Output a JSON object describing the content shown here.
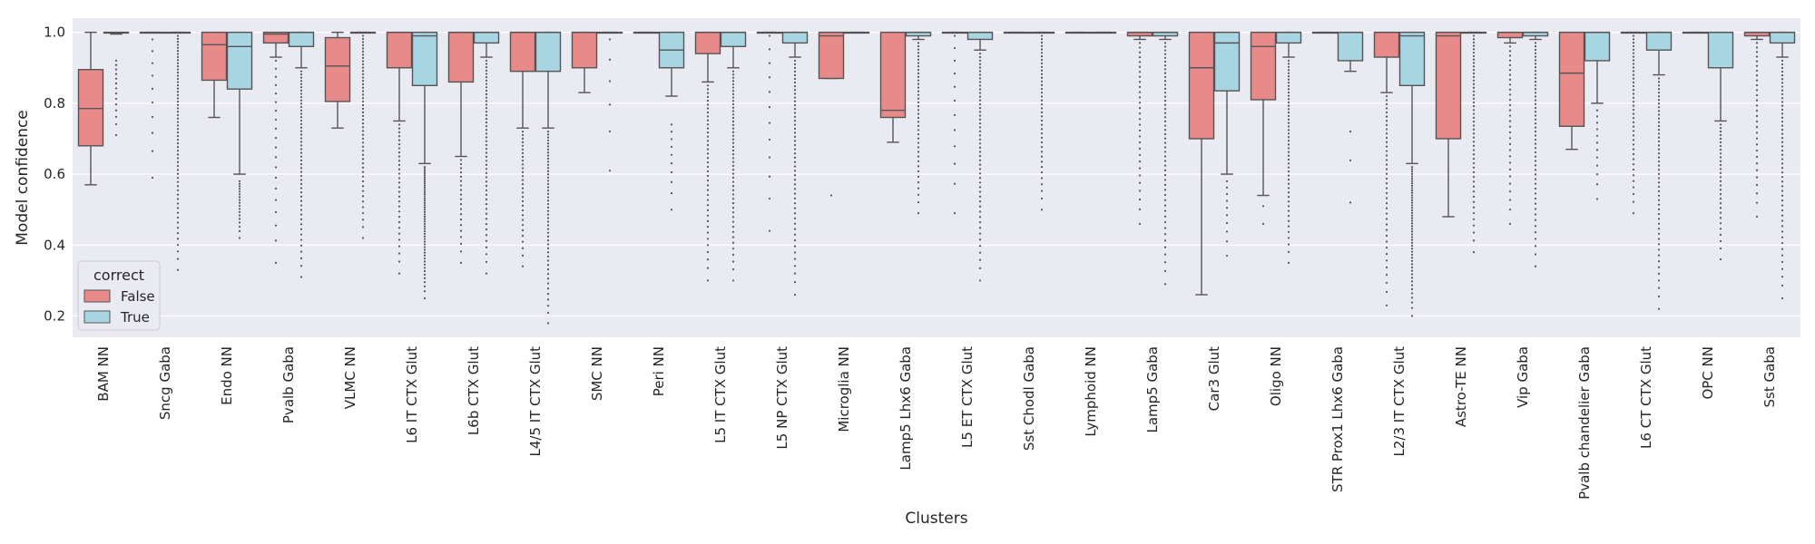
{
  "chart_data": {
    "type": "box",
    "xlabel": "Clusters",
    "ylabel": "Model confidence",
    "ylim": [
      0.14,
      1.04
    ],
    "yticks": [
      "0.2",
      "0.4",
      "0.6",
      "0.8",
      "1.0"
    ],
    "grid": true,
    "legend": {
      "title": "correct",
      "placement": "lower-left",
      "entries": [
        {
          "label": "False",
          "color": "#e8898a"
        },
        {
          "label": "True",
          "color": "#a8d5e2"
        }
      ]
    },
    "series_colors": {
      "False": "#e8898a",
      "True": "#a8d5e2"
    },
    "categories": [
      "BAM NN",
      "Sncg Gaba",
      "Endo NN",
      "Pvalb Gaba",
      "VLMC NN",
      "L6 IT CTX Glut",
      "L6b CTX Glut",
      "L4/5 IT CTX Glut",
      "SMC NN",
      "Peri NN",
      "L5 IT CTX Glut",
      "L5 NP CTX Glut",
      "Microglia NN",
      "Lamp5 Lhx6 Gaba",
      "L5 ET CTX Glut",
      "Sst Chodl Gaba",
      "Lymphoid NN",
      "Lamp5 Gaba",
      "Car3 Glut",
      "Oligo NN",
      "STR Prox1 Lhx6 Gaba",
      "L2/3 IT CTX Glut",
      "Astro-TE NN",
      "Vip Gaba",
      "Pvalb chandelier Gaba",
      "L6 CT CTX Glut",
      "OPC NN",
      "Sst Gaba"
    ],
    "boxes": [
      {
        "cat": 0,
        "hue": "False",
        "q1": 0.68,
        "med": 0.785,
        "q3": 0.895,
        "wlo": 0.57,
        "whi": 1.0,
        "flo": 0,
        "fhi": 0,
        "n": 0
      },
      {
        "cat": 0,
        "hue": "True",
        "q1": 0.998,
        "med": 1.0,
        "q3": 1.0,
        "wlo": 0.995,
        "whi": 1.0,
        "flo": 0.71,
        "fhi": 0.92,
        "n": 14
      },
      {
        "cat": 1,
        "hue": "False",
        "q1": 1.0,
        "med": 1.0,
        "q3": 1.0,
        "wlo": 1.0,
        "whi": 1.0,
        "flo": 0.59,
        "fhi": 0.98,
        "n": 10
      },
      {
        "cat": 1,
        "hue": "True",
        "q1": 1.0,
        "med": 1.0,
        "q3": 1.0,
        "wlo": 1.0,
        "whi": 1.0,
        "flo": 0.33,
        "fhi": 0.99,
        "n": 60
      },
      {
        "cat": 2,
        "hue": "False",
        "q1": 0.865,
        "med": 0.965,
        "q3": 1.0,
        "wlo": 0.76,
        "whi": 1.0,
        "flo": 0,
        "fhi": 0,
        "n": 0
      },
      {
        "cat": 2,
        "hue": "True",
        "q1": 0.84,
        "med": 0.96,
        "q3": 1.0,
        "wlo": 0.6,
        "whi": 1.0,
        "flo": 0.42,
        "fhi": 0.58,
        "n": 18
      },
      {
        "cat": 3,
        "hue": "False",
        "q1": 0.97,
        "med": 0.995,
        "q3": 1.0,
        "wlo": 0.93,
        "whi": 1.0,
        "flo": 0.35,
        "fhi": 0.92,
        "n": 20
      },
      {
        "cat": 3,
        "hue": "True",
        "q1": 0.96,
        "med": 1.0,
        "q3": 1.0,
        "wlo": 0.9,
        "whi": 1.0,
        "flo": 0.31,
        "fhi": 0.89,
        "n": 50
      },
      {
        "cat": 4,
        "hue": "False",
        "q1": 0.805,
        "med": 0.905,
        "q3": 0.985,
        "wlo": 0.73,
        "whi": 1.0,
        "flo": 0,
        "fhi": 0,
        "n": 0
      },
      {
        "cat": 4,
        "hue": "True",
        "q1": 1.0,
        "med": 1.0,
        "q3": 1.0,
        "wlo": 1.0,
        "whi": 1.0,
        "flo": 0.42,
        "fhi": 0.99,
        "n": 50
      },
      {
        "cat": 5,
        "hue": "False",
        "q1": 0.9,
        "med": 1.0,
        "q3": 1.0,
        "wlo": 0.75,
        "whi": 1.0,
        "flo": 0.32,
        "fhi": 0.74,
        "n": 30
      },
      {
        "cat": 5,
        "hue": "True",
        "q1": 0.85,
        "med": 0.99,
        "q3": 1.0,
        "wlo": 0.63,
        "whi": 1.0,
        "flo": 0.25,
        "fhi": 0.62,
        "n": 50
      },
      {
        "cat": 6,
        "hue": "False",
        "q1": 0.86,
        "med": 1.0,
        "q3": 1.0,
        "wlo": 0.65,
        "whi": 1.0,
        "flo": 0.35,
        "fhi": 0.64,
        "n": 20
      },
      {
        "cat": 6,
        "hue": "True",
        "q1": 0.97,
        "med": 1.0,
        "q3": 1.0,
        "wlo": 0.93,
        "whi": 1.0,
        "flo": 0.32,
        "fhi": 0.92,
        "n": 50
      },
      {
        "cat": 7,
        "hue": "False",
        "q1": 0.89,
        "med": 1.0,
        "q3": 1.0,
        "wlo": 0.73,
        "whi": 1.0,
        "flo": 0.34,
        "fhi": 0.72,
        "n": 30
      },
      {
        "cat": 7,
        "hue": "True",
        "q1": 0.89,
        "med": 1.0,
        "q3": 1.0,
        "wlo": 0.73,
        "whi": 1.0,
        "flo": 0.18,
        "fhi": 0.72,
        "n": 50
      },
      {
        "cat": 8,
        "hue": "False",
        "q1": 0.9,
        "med": 1.0,
        "q3": 1.0,
        "wlo": 0.83,
        "whi": 1.0,
        "flo": 0,
        "fhi": 0,
        "n": 0
      },
      {
        "cat": 8,
        "hue": "True",
        "q1": 1.0,
        "med": 1.0,
        "q3": 1.0,
        "wlo": 1.0,
        "whi": 1.0,
        "flo": 0.61,
        "fhi": 0.98,
        "n": 6
      },
      {
        "cat": 9,
        "hue": "False",
        "q1": 1.0,
        "med": 1.0,
        "q3": 1.0,
        "wlo": 1.0,
        "whi": 1.0,
        "flo": 0,
        "fhi": 0,
        "n": 0
      },
      {
        "cat": 9,
        "hue": "True",
        "q1": 0.9,
        "med": 0.95,
        "q3": 1.0,
        "wlo": 0.82,
        "whi": 1.0,
        "flo": 0.5,
        "fhi": 0.74,
        "n": 10
      },
      {
        "cat": 10,
        "hue": "False",
        "q1": 0.94,
        "med": 1.0,
        "q3": 1.0,
        "wlo": 0.86,
        "whi": 1.0,
        "flo": 0.3,
        "fhi": 0.85,
        "n": 40
      },
      {
        "cat": 10,
        "hue": "True",
        "q1": 0.96,
        "med": 1.0,
        "q3": 1.0,
        "wlo": 0.9,
        "whi": 1.0,
        "flo": 0.3,
        "fhi": 0.89,
        "n": 50
      },
      {
        "cat": 11,
        "hue": "False",
        "q1": 1.0,
        "med": 1.0,
        "q3": 1.0,
        "wlo": 1.0,
        "whi": 1.0,
        "flo": 0.44,
        "fhi": 0.99,
        "n": 12
      },
      {
        "cat": 11,
        "hue": "True",
        "q1": 0.97,
        "med": 1.0,
        "q3": 1.0,
        "wlo": 0.93,
        "whi": 1.0,
        "flo": 0.26,
        "fhi": 0.92,
        "n": 50
      },
      {
        "cat": 12,
        "hue": "False",
        "q1": 0.87,
        "med": 0.99,
        "q3": 1.0,
        "wlo": 0.87,
        "whi": 1.0,
        "flo": 0.54,
        "fhi": 0.54,
        "n": 1
      },
      {
        "cat": 12,
        "hue": "True",
        "q1": 1.0,
        "med": 1.0,
        "q3": 1.0,
        "wlo": 1.0,
        "whi": 1.0,
        "flo": 0,
        "fhi": 0,
        "n": 0
      },
      {
        "cat": 13,
        "hue": "False",
        "q1": 0.76,
        "med": 0.78,
        "q3": 1.0,
        "wlo": 0.69,
        "whi": 1.0,
        "flo": 0,
        "fhi": 0,
        "n": 0
      },
      {
        "cat": 13,
        "hue": "True",
        "q1": 0.99,
        "med": 1.0,
        "q3": 1.0,
        "wlo": 0.98,
        "whi": 1.0,
        "flo": 0.49,
        "fhi": 0.97,
        "n": 40
      },
      {
        "cat": 14,
        "hue": "False",
        "q1": 1.0,
        "med": 1.0,
        "q3": 1.0,
        "wlo": 1.0,
        "whi": 1.0,
        "flo": 0.49,
        "fhi": 0.99,
        "n": 12
      },
      {
        "cat": 14,
        "hue": "True",
        "q1": 0.98,
        "med": 1.0,
        "q3": 1.0,
        "wlo": 0.95,
        "whi": 1.0,
        "flo": 0.3,
        "fhi": 0.94,
        "n": 50
      },
      {
        "cat": 15,
        "hue": "False",
        "q1": 1.0,
        "med": 1.0,
        "q3": 1.0,
        "wlo": 1.0,
        "whi": 1.0,
        "flo": 0,
        "fhi": 0,
        "n": 0
      },
      {
        "cat": 15,
        "hue": "True",
        "q1": 1.0,
        "med": 1.0,
        "q3": 1.0,
        "wlo": 1.0,
        "whi": 1.0,
        "flo": 0.5,
        "fhi": 0.99,
        "n": 40
      },
      {
        "cat": 16,
        "hue": "False",
        "q1": 1.0,
        "med": 1.0,
        "q3": 1.0,
        "wlo": 1.0,
        "whi": 1.0,
        "flo": 0,
        "fhi": 0,
        "n": 0
      },
      {
        "cat": 16,
        "hue": "True",
        "q1": 1.0,
        "med": 1.0,
        "q3": 1.0,
        "wlo": 1.0,
        "whi": 1.0,
        "flo": 0,
        "fhi": 0,
        "n": 0
      },
      {
        "cat": 17,
        "hue": "False",
        "q1": 0.99,
        "med": 1.0,
        "q3": 1.0,
        "wlo": 0.98,
        "whi": 1.0,
        "flo": 0.46,
        "fhi": 0.97,
        "n": 30
      },
      {
        "cat": 17,
        "hue": "True",
        "q1": 0.99,
        "med": 1.0,
        "q3": 1.0,
        "wlo": 0.98,
        "whi": 1.0,
        "flo": 0.29,
        "fhi": 0.97,
        "n": 50
      },
      {
        "cat": 18,
        "hue": "False",
        "q1": 0.7,
        "med": 0.9,
        "q3": 1.0,
        "wlo": 0.26,
        "whi": 1.0,
        "flo": 0,
        "fhi": 0,
        "n": 0
      },
      {
        "cat": 18,
        "hue": "True",
        "q1": 0.835,
        "med": 0.97,
        "q3": 1.0,
        "wlo": 0.6,
        "whi": 1.0,
        "flo": 0.37,
        "fhi": 0.58,
        "n": 10
      },
      {
        "cat": 19,
        "hue": "False",
        "q1": 0.81,
        "med": 0.96,
        "q3": 1.0,
        "wlo": 0.54,
        "whi": 1.0,
        "flo": 0.46,
        "fhi": 0.51,
        "n": 2
      },
      {
        "cat": 19,
        "hue": "True",
        "q1": 0.97,
        "med": 1.0,
        "q3": 1.0,
        "wlo": 0.93,
        "whi": 1.0,
        "flo": 0.35,
        "fhi": 0.92,
        "n": 50
      },
      {
        "cat": 20,
        "hue": "False",
        "q1": 1.0,
        "med": 1.0,
        "q3": 1.0,
        "wlo": 1.0,
        "whi": 1.0,
        "flo": 0,
        "fhi": 0,
        "n": 0
      },
      {
        "cat": 20,
        "hue": "True",
        "q1": 0.92,
        "med": 1.0,
        "q3": 1.0,
        "wlo": 0.89,
        "whi": 1.0,
        "flo": 0.52,
        "fhi": 0.72,
        "n": 3
      },
      {
        "cat": 21,
        "hue": "False",
        "q1": 0.93,
        "med": 1.0,
        "q3": 1.0,
        "wlo": 0.83,
        "whi": 1.0,
        "flo": 0.23,
        "fhi": 0.82,
        "n": 40
      },
      {
        "cat": 21,
        "hue": "True",
        "q1": 0.85,
        "med": 0.99,
        "q3": 1.0,
        "wlo": 0.63,
        "whi": 1.0,
        "flo": 0.2,
        "fhi": 0.62,
        "n": 50
      },
      {
        "cat": 22,
        "hue": "False",
        "q1": 0.7,
        "med": 0.99,
        "q3": 1.0,
        "wlo": 0.48,
        "whi": 1.0,
        "flo": 0,
        "fhi": 0,
        "n": 0
      },
      {
        "cat": 22,
        "hue": "True",
        "q1": 1.0,
        "med": 1.0,
        "q3": 1.0,
        "wlo": 1.0,
        "whi": 1.0,
        "flo": 0.38,
        "fhi": 0.99,
        "n": 50
      },
      {
        "cat": 23,
        "hue": "False",
        "q1": 0.985,
        "med": 1.0,
        "q3": 1.0,
        "wlo": 0.97,
        "whi": 1.0,
        "flo": 0.46,
        "fhi": 0.96,
        "n": 30
      },
      {
        "cat": 23,
        "hue": "True",
        "q1": 0.99,
        "med": 1.0,
        "q3": 1.0,
        "wlo": 0.98,
        "whi": 1.0,
        "flo": 0.34,
        "fhi": 0.97,
        "n": 50
      },
      {
        "cat": 24,
        "hue": "False",
        "q1": 0.735,
        "med": 0.885,
        "q3": 1.0,
        "wlo": 0.67,
        "whi": 1.0,
        "flo": 0,
        "fhi": 0,
        "n": 0
      },
      {
        "cat": 24,
        "hue": "True",
        "q1": 0.92,
        "med": 1.0,
        "q3": 1.0,
        "wlo": 0.8,
        "whi": 1.0,
        "flo": 0.53,
        "fhi": 0.78,
        "n": 12
      },
      {
        "cat": 25,
        "hue": "False",
        "q1": 1.0,
        "med": 1.0,
        "q3": 1.0,
        "wlo": 1.0,
        "whi": 1.0,
        "flo": 0.49,
        "fhi": 0.99,
        "n": 40
      },
      {
        "cat": 25,
        "hue": "True",
        "q1": 0.95,
        "med": 1.0,
        "q3": 1.0,
        "wlo": 0.88,
        "whi": 1.0,
        "flo": 0.22,
        "fhi": 0.87,
        "n": 50
      },
      {
        "cat": 26,
        "hue": "False",
        "q1": 1.0,
        "med": 1.0,
        "q3": 1.0,
        "wlo": 1.0,
        "whi": 1.0,
        "flo": 0,
        "fhi": 0,
        "n": 0
      },
      {
        "cat": 26,
        "hue": "True",
        "q1": 0.9,
        "med": 1.0,
        "q3": 1.0,
        "wlo": 0.75,
        "whi": 1.0,
        "flo": 0.36,
        "fhi": 0.74,
        "n": 30
      },
      {
        "cat": 27,
        "hue": "False",
        "q1": 0.99,
        "med": 1.0,
        "q3": 1.0,
        "wlo": 0.98,
        "whi": 1.0,
        "flo": 0.48,
        "fhi": 0.97,
        "n": 30
      },
      {
        "cat": 27,
        "hue": "True",
        "q1": 0.97,
        "med": 1.0,
        "q3": 1.0,
        "wlo": 0.93,
        "whi": 1.0,
        "flo": 0.25,
        "fhi": 0.92,
        "n": 50
      }
    ]
  }
}
